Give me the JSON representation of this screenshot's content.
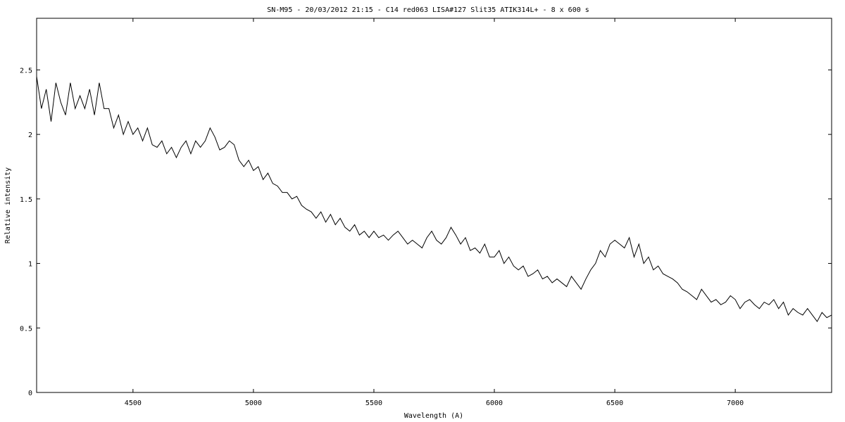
{
  "chart_data": {
    "type": "line",
    "title": "SN-M95 - 20/03/2012 21:15 - C14 red063 LISA#127 Slit35 ATIK314L+ - 8 x 600 s",
    "xlabel": "Wavelength (A)",
    "ylabel": "Relative intensity",
    "xlim": [
      4100,
      7400
    ],
    "ylim": [
      0,
      2.9
    ],
    "x_ticks": [
      4500,
      5000,
      5500,
      6000,
      6500,
      7000
    ],
    "y_ticks": [
      0,
      0.5,
      1,
      1.5,
      2,
      2.5
    ],
    "x_tick_labels": [
      "4500",
      "5000",
      "5500",
      "6000",
      "6500",
      "7000"
    ],
    "y_tick_labels": [
      "0",
      "0.5",
      "1",
      "1.5",
      "2",
      "2.5"
    ],
    "grid": false,
    "legend": "none",
    "line_color": "#000000",
    "series": [
      {
        "x": [
          4100,
          4120,
          4140,
          4160,
          4180,
          4200,
          4220,
          4240,
          4260,
          4280,
          4300,
          4320,
          4340,
          4360,
          4380,
          4400,
          4420,
          4440,
          4460,
          4480,
          4500,
          4520,
          4540,
          4560,
          4580,
          4600,
          4620,
          4640,
          4660,
          4680,
          4700,
          4720,
          4740,
          4760,
          4780,
          4800,
          4820,
          4840,
          4860,
          4880,
          4900,
          4920,
          4940,
          4960,
          4980,
          5000,
          5020,
          5040,
          5060,
          5080,
          5100,
          5120,
          5140,
          5160,
          5180,
          5200,
          5220,
          5240,
          5260,
          5280,
          5300,
          5320,
          5340,
          5360,
          5380,
          5400,
          5420,
          5440,
          5460,
          5480,
          5500,
          5520,
          5540,
          5560,
          5580,
          5600,
          5620,
          5640,
          5660,
          5680,
          5700,
          5720,
          5740,
          5760,
          5780,
          5800,
          5820,
          5840,
          5860,
          5880,
          5900,
          5920,
          5940,
          5960,
          5980,
          6000,
          6020,
          6040,
          6060,
          6080,
          6100,
          6120,
          6140,
          6160,
          6180,
          6200,
          6220,
          6240,
          6260,
          6280,
          6300,
          6320,
          6340,
          6360,
          6380,
          6400,
          6420,
          6440,
          6460,
          6480,
          6500,
          6520,
          6540,
          6560,
          6580,
          6600,
          6620,
          6640,
          6660,
          6680,
          6700,
          6720,
          6740,
          6760,
          6780,
          6800,
          6820,
          6840,
          6860,
          6880,
          6900,
          6920,
          6940,
          6960,
          6980,
          7000,
          7020,
          7040,
          7060,
          7080,
          7100,
          7120,
          7140,
          7160,
          7180,
          7200,
          7220,
          7240,
          7260,
          7280,
          7300,
          7320,
          7340,
          7360,
          7380,
          7400
        ],
        "y": [
          2.45,
          2.2,
          2.35,
          2.1,
          2.4,
          2.25,
          2.15,
          2.4,
          2.2,
          2.3,
          2.2,
          2.35,
          2.15,
          2.4,
          2.2,
          2.2,
          2.05,
          2.15,
          2.0,
          2.1,
          2.0,
          2.05,
          1.95,
          2.05,
          1.92,
          1.9,
          1.95,
          1.85,
          1.9,
          1.82,
          1.9,
          1.95,
          1.85,
          1.95,
          1.9,
          1.95,
          2.05,
          1.98,
          1.88,
          1.9,
          1.95,
          1.92,
          1.8,
          1.75,
          1.8,
          1.72,
          1.75,
          1.65,
          1.7,
          1.62,
          1.6,
          1.55,
          1.55,
          1.5,
          1.52,
          1.45,
          1.42,
          1.4,
          1.35,
          1.4,
          1.32,
          1.38,
          1.3,
          1.35,
          1.28,
          1.25,
          1.3,
          1.22,
          1.25,
          1.2,
          1.25,
          1.2,
          1.22,
          1.18,
          1.22,
          1.25,
          1.2,
          1.15,
          1.18,
          1.15,
          1.12,
          1.2,
          1.25,
          1.18,
          1.15,
          1.2,
          1.28,
          1.22,
          1.15,
          1.2,
          1.1,
          1.12,
          1.08,
          1.15,
          1.05,
          1.05,
          1.1,
          1.0,
          1.05,
          0.98,
          0.95,
          0.98,
          0.9,
          0.92,
          0.95,
          0.88,
          0.9,
          0.85,
          0.88,
          0.85,
          0.82,
          0.9,
          0.85,
          0.8,
          0.88,
          0.95,
          1.0,
          1.1,
          1.05,
          1.15,
          1.18,
          1.15,
          1.12,
          1.2,
          1.05,
          1.15,
          1.0,
          1.05,
          0.95,
          0.98,
          0.92,
          0.9,
          0.88,
          0.85,
          0.8,
          0.78,
          0.75,
          0.72,
          0.8,
          0.75,
          0.7,
          0.72,
          0.68,
          0.7,
          0.75,
          0.72,
          0.65,
          0.7,
          0.72,
          0.68,
          0.65,
          0.7,
          0.68,
          0.72,
          0.65,
          0.7,
          0.6,
          0.65,
          0.62,
          0.6,
          0.65,
          0.6,
          0.55,
          0.62,
          0.58,
          0.6
        ]
      }
    ]
  }
}
